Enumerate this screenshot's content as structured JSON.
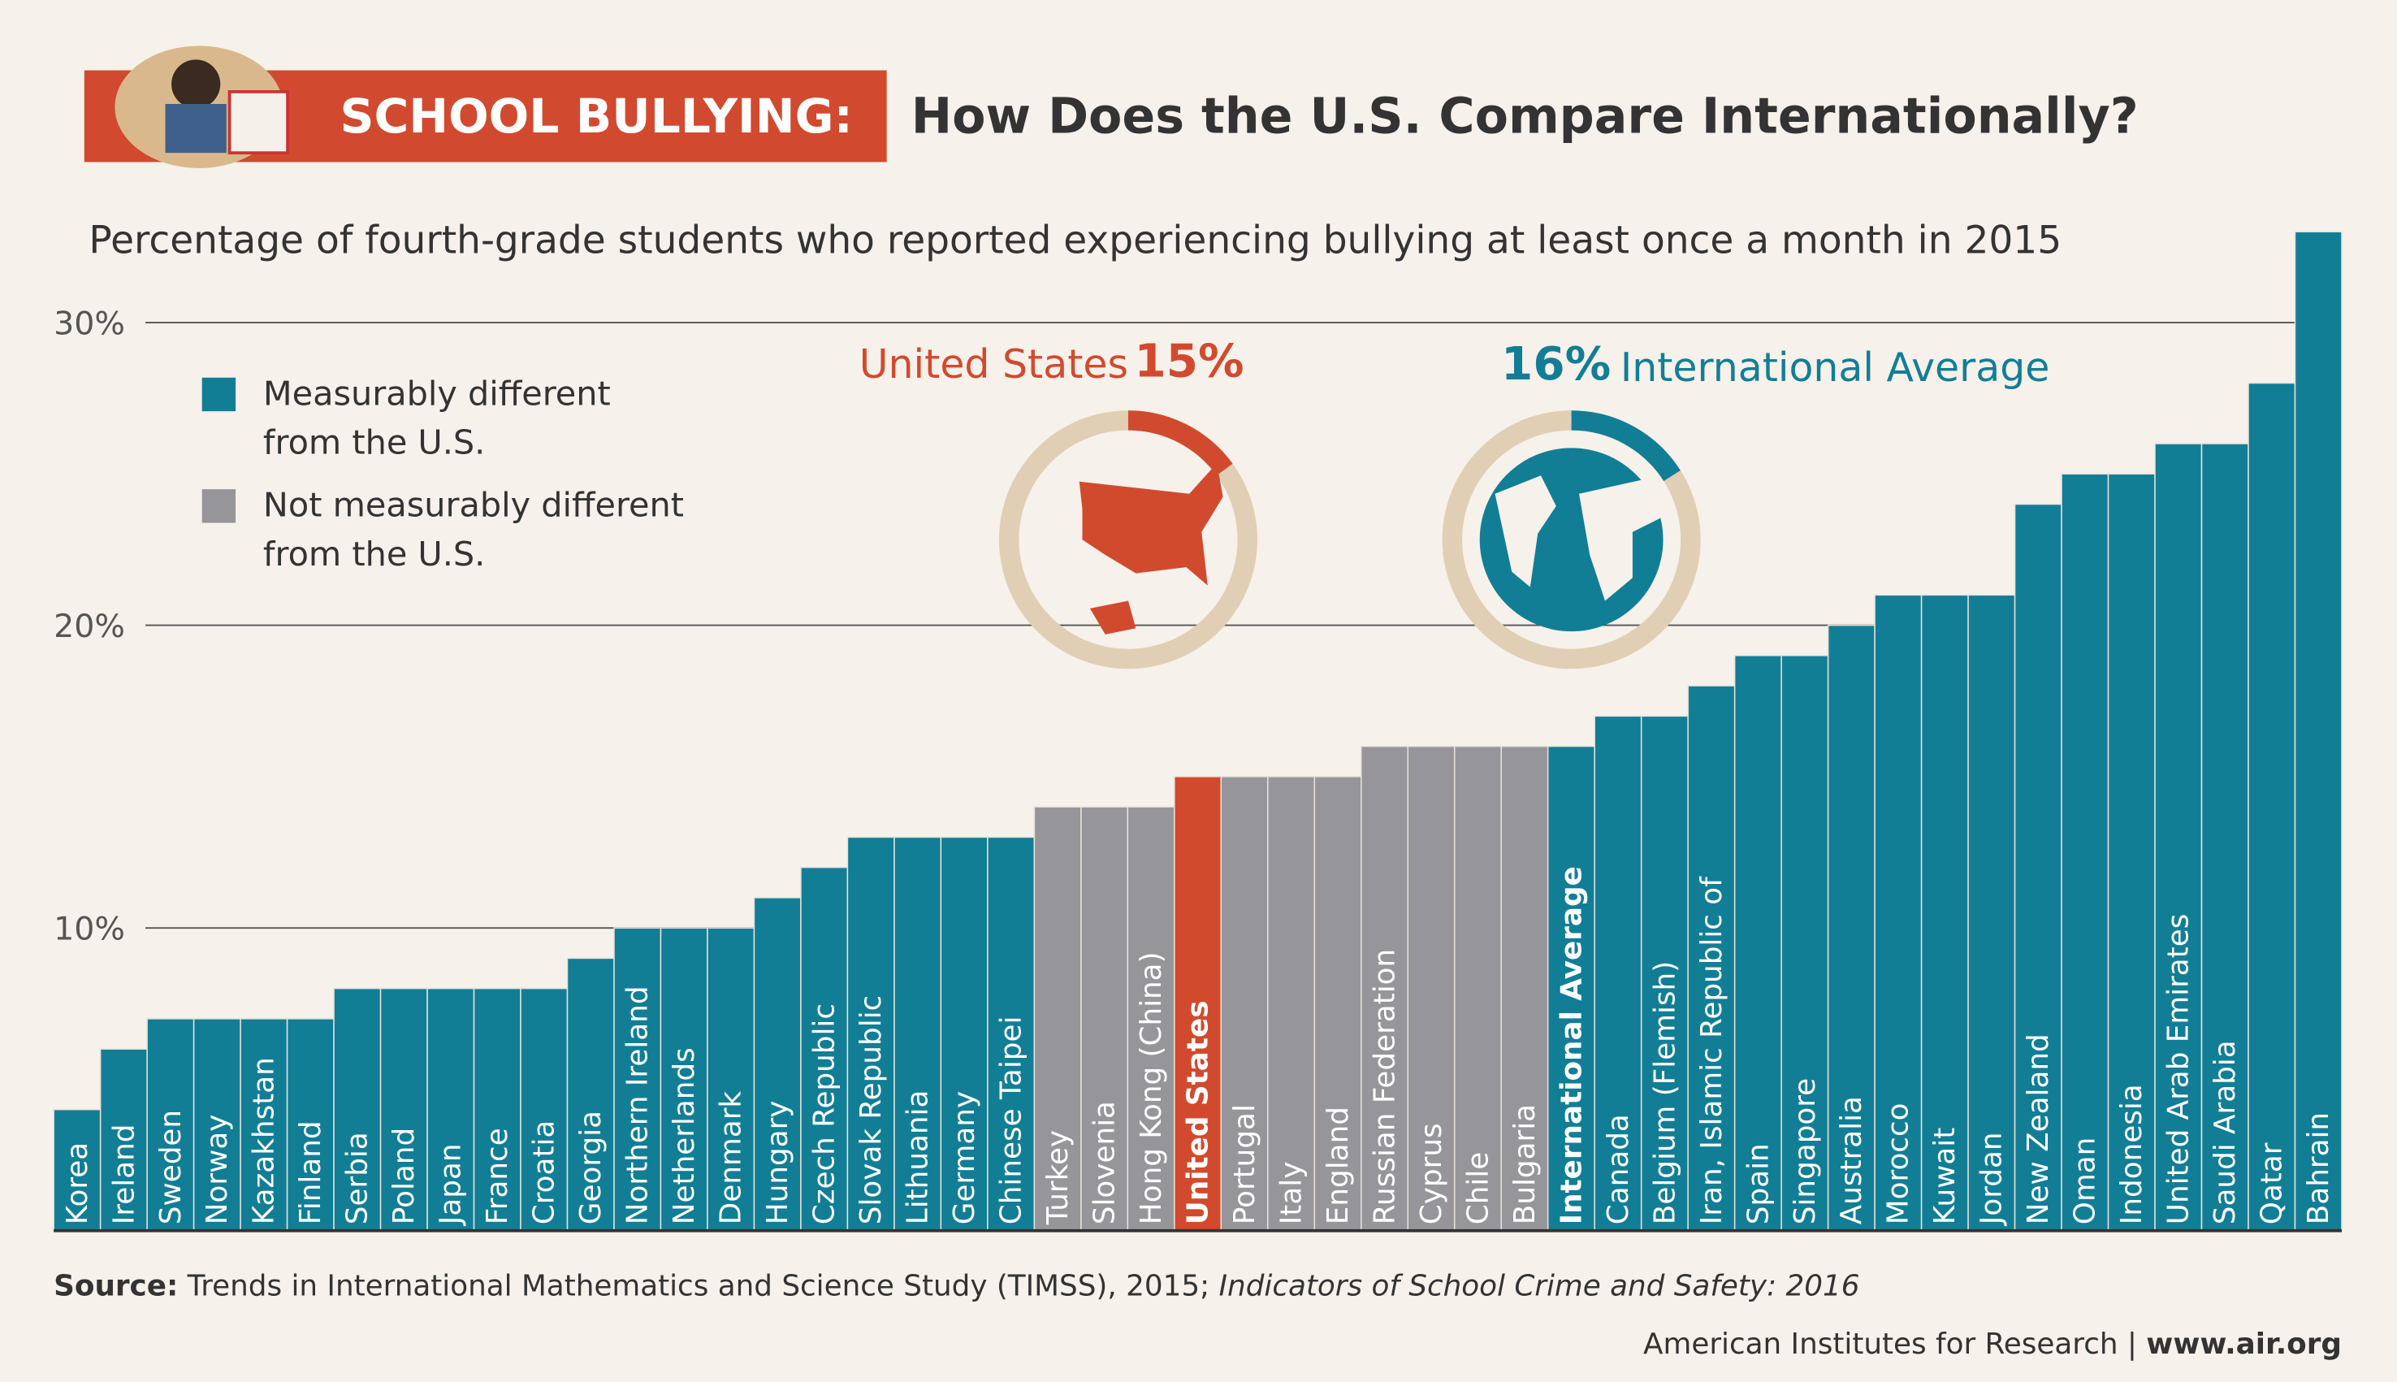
{
  "header": {
    "tag": "SCHOOL BULLYING:",
    "title": "How Does the U.S. Compare Internationally?"
  },
  "chart_data": {
    "type": "bar",
    "subtitle": "Percentage of fourth-grade students who reported experiencing bullying at least once a month in 2015",
    "categories": [
      "Korea",
      "Ireland",
      "Sweden",
      "Norway",
      "Kazakhstan",
      "Finland",
      "Serbia",
      "Poland",
      "Japan",
      "France",
      "Croatia",
      "Georgia",
      "Northern Ireland",
      "Netherlands",
      "Denmark",
      "Hungary",
      "Czech Republic",
      "Slovak Republic",
      "Lithuania",
      "Germany",
      "Chinese Taipei",
      "Turkey",
      "Slovenia",
      "Hong Kong (China)",
      "United States",
      "Portugal",
      "Italy",
      "England",
      "Russian Federation",
      "Cyprus",
      "Chile",
      "Bulgaria",
      "International Average",
      "Canada",
      "Belgium (Flemish)",
      "Iran, Islamic Republic of",
      "Spain",
      "Singapore",
      "Australia",
      "Morocco",
      "Kuwait",
      "Jordan",
      "New Zealand",
      "Oman",
      "Indonesia",
      "United Arab Emirates",
      "Saudi Arabia",
      "Qatar",
      "Bahrain"
    ],
    "values": [
      4,
      6,
      7,
      7,
      7,
      7,
      8,
      8,
      8,
      8,
      8,
      9,
      10,
      10,
      10,
      11,
      12,
      13,
      13,
      13,
      13,
      14,
      14,
      14,
      15,
      15,
      15,
      15,
      16,
      16,
      16,
      16,
      16,
      17,
      17,
      18,
      19,
      19,
      20,
      21,
      21,
      21,
      24,
      25,
      25,
      26,
      26,
      28,
      33
    ],
    "colors": [
      "#127e96",
      "#127e96",
      "#127e96",
      "#127e96",
      "#127e96",
      "#127e96",
      "#127e96",
      "#127e96",
      "#127e96",
      "#127e96",
      "#127e96",
      "#127e96",
      "#127e96",
      "#127e96",
      "#127e96",
      "#127e96",
      "#127e96",
      "#127e96",
      "#127e96",
      "#127e96",
      "#127e96",
      "#96969a",
      "#96969a",
      "#96969a",
      "#d24a2e",
      "#96969a",
      "#96969a",
      "#96969a",
      "#96969a",
      "#96969a",
      "#96969a",
      "#96969a",
      "#127e96",
      "#127e96",
      "#127e96",
      "#127e96",
      "#127e96",
      "#127e96",
      "#127e96",
      "#127e96",
      "#127e96",
      "#127e96",
      "#127e96",
      "#127e96",
      "#127e96",
      "#127e96",
      "#127e96",
      "#127e96",
      "#127e96"
    ],
    "ylim": [
      0,
      33
    ],
    "yticks": [
      {
        "value": 10,
        "label": "10%"
      },
      {
        "value": 20,
        "label": "20%"
      },
      {
        "value": 30,
        "label": "30%"
      }
    ],
    "grid": true,
    "legend": [
      {
        "lines": [
          "Measurably different",
          "from the U.S."
        ],
        "color": "#127e96"
      },
      {
        "lines": [
          "Not measurably different",
          "from the U.S."
        ],
        "color": "#96969a"
      }
    ],
    "donuts": [
      {
        "name": "United States",
        "value": 15,
        "value_label": "15%",
        "color": "#d24a2e"
      },
      {
        "name": "International Average",
        "value": 16,
        "value_label": "16%",
        "color": "#127e96"
      }
    ]
  },
  "footer": {
    "source_label": "Source:",
    "source": "Trends in International Mathematics and Science Study (TIMSS), 2015;",
    "source_italic": "Indicators of School Crime and Safety: 2016",
    "org": "American Institutes for Research |",
    "url": "www.air.org"
  }
}
